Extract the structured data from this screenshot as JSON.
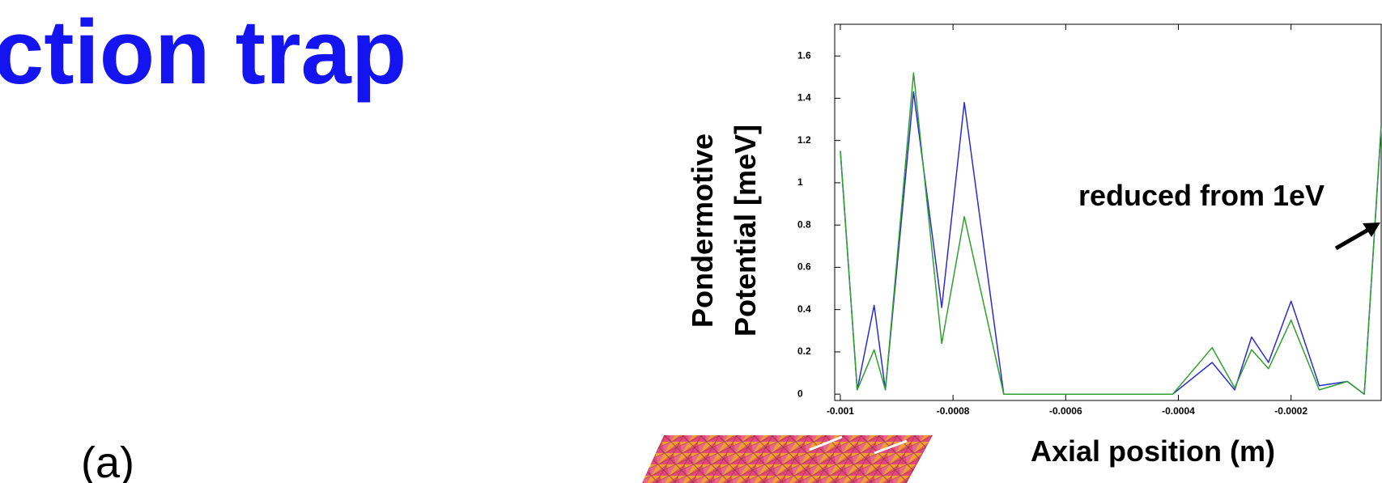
{
  "title": "ction trap",
  "panel_label": "(a)",
  "chart_data": {
    "type": "line",
    "y_label": [
      "Pondermotive",
      "Potential [meV]"
    ],
    "x_label": "Axial position (m)",
    "annotation": "reduced from 1eV",
    "x": [
      -0.001,
      -0.00097,
      -0.00094,
      -0.00092,
      -0.00087,
      -0.00082,
      -0.00078,
      -0.00071,
      -0.00041,
      -0.00034,
      -0.0003,
      -0.00027,
      -0.00024,
      -0.0002,
      -0.00015,
      -0.0001,
      -7e-05,
      -4e-05
    ],
    "series": [
      {
        "color": "#2b2bd0",
        "values": [
          1.15,
          0.02,
          0.42,
          0.02,
          1.43,
          0.41,
          1.38,
          0,
          0,
          0.15,
          0.02,
          0.27,
          0.15,
          0.44,
          0.04,
          0.06,
          0,
          1.27
        ]
      },
      {
        "color": "#2ea02e",
        "values": [
          1.15,
          0.02,
          0.21,
          0.02,
          1.52,
          0.24,
          0.84,
          0,
          0,
          0.22,
          0.03,
          0.21,
          0.12,
          0.35,
          0.02,
          0.06,
          0,
          1.27
        ]
      }
    ],
    "xlim": [
      -0.00101,
      -4e-05
    ],
    "ylim": [
      -0.03,
      1.75
    ],
    "xticks": [
      -0.001,
      -0.0008,
      -0.0006,
      -0.0004,
      -0.0002
    ],
    "yticks": [
      0,
      0.2,
      0.4,
      0.6,
      0.8,
      1,
      1.2,
      1.4,
      1.6
    ]
  }
}
